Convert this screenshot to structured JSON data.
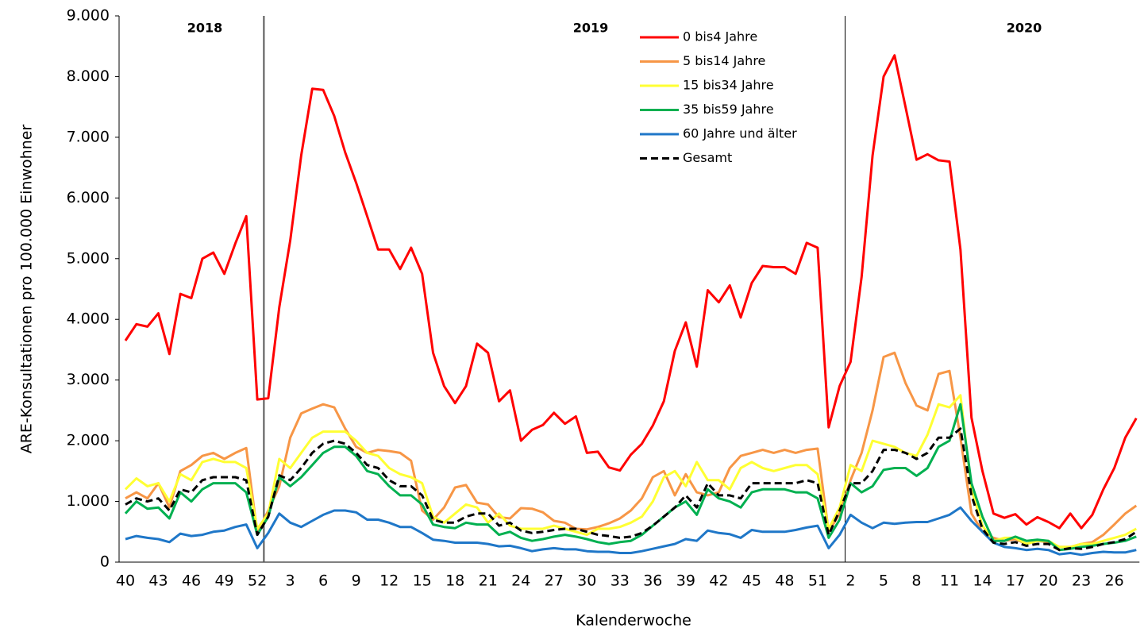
{
  "chart_data": {
    "type": "line",
    "x_label": "Kalenderwoche",
    "y_label": "ARE-Konsultationen pro 100.000 Einwohner",
    "annotations": [
      "2018",
      "2019",
      "2020"
    ],
    "categories": [
      "40",
      null,
      null,
      "43",
      null,
      null,
      "46",
      null,
      null,
      "49",
      null,
      null,
      "52",
      null,
      null,
      "3",
      null,
      null,
      "6",
      null,
      null,
      "9",
      null,
      null,
      "12",
      null,
      null,
      "15",
      null,
      null,
      "18",
      null,
      null,
      "21",
      null,
      null,
      "24",
      null,
      null,
      "27",
      null,
      null,
      "30",
      null,
      null,
      "33",
      null,
      null,
      "36",
      null,
      null,
      "39",
      null,
      null,
      "42",
      null,
      null,
      "45",
      null,
      null,
      "48",
      null,
      null,
      "51",
      null,
      null,
      "2",
      null,
      null,
      "5",
      null,
      null,
      "8",
      null,
      null,
      "11",
      null,
      null,
      "14",
      null,
      null,
      "17",
      null,
      null,
      "20",
      null,
      null,
      "23",
      null,
      null,
      "26",
      null,
      null
    ],
    "ylim": [
      0,
      9000
    ],
    "yticks": [
      0,
      {
        "value": 1000,
        "label": "1.000"
      },
      {
        "value": 2000,
        "label": "2.000"
      },
      {
        "value": 3000,
        "label": "3.000"
      },
      {
        "value": 4000,
        "label": "4.000"
      },
      {
        "value": 5000,
        "label": "5.000"
      },
      {
        "value": 6000,
        "label": "6.000"
      },
      {
        "value": 7000,
        "label": "7.000"
      },
      {
        "value": 8000,
        "label": "8.000"
      },
      {
        "value": 9000,
        "label": "9.000"
      }
    ],
    "series": [
      {
        "name": "0 bis4 Jahre",
        "color": "#ff0000",
        "values": [
          3650,
          3920,
          3880,
          4100,
          3430,
          4420,
          4350,
          5000,
          5100,
          4750,
          5250,
          5700,
          2680,
          2700,
          4200,
          5300,
          6700,
          7800,
          7780,
          7350,
          6750,
          6250,
          5700,
          5150,
          5150,
          4830,
          5180,
          4750,
          3450,
          2900,
          2620,
          2900,
          3600,
          3450,
          2650,
          2830,
          2000,
          2180,
          2260,
          2460,
          2280,
          2400,
          1800,
          1820,
          1560,
          1510,
          1770,
          1950,
          2250,
          2650,
          3480,
          3950,
          3220,
          4480,
          4280,
          4560,
          4030,
          4600,
          4880,
          4860,
          4860,
          4750,
          5260,
          5180,
          2220,
          2900,
          3300,
          4700,
          6700,
          8000,
          8350,
          7500,
          6630,
          6720,
          6620,
          6600,
          5150,
          2380,
          1500,
          800,
          730,
          790,
          620,
          740,
          660,
          560,
          800,
          560,
          780,
          1200,
          1550,
          2050,
          2370
        ]
      },
      {
        "name": "5 bis14 Jahre",
        "color": "#f79646",
        "values": [
          1050,
          1150,
          1050,
          1300,
          900,
          1500,
          1600,
          1750,
          1800,
          1700,
          1800,
          1880,
          480,
          850,
          1250,
          2050,
          2450,
          2530,
          2600,
          2550,
          2200,
          1900,
          1800,
          1850,
          1830,
          1800,
          1670,
          850,
          700,
          900,
          1230,
          1270,
          980,
          950,
          740,
          720,
          890,
          880,
          820,
          680,
          650,
          550,
          540,
          580,
          640,
          720,
          850,
          1050,
          1400,
          1500,
          1100,
          1450,
          1150,
          1100,
          1150,
          1550,
          1750,
          1800,
          1850,
          1800,
          1850,
          1800,
          1850,
          1870,
          500,
          800,
          1350,
          1800,
          2500,
          3380,
          3450,
          2950,
          2580,
          2500,
          3100,
          3150,
          2050,
          800,
          500,
          400,
          350,
          380,
          300,
          350,
          330,
          250,
          250,
          300,
          330,
          450,
          620,
          800,
          930
        ]
      },
      {
        "name": "15 bis34 Jahre",
        "color": "#ffff33",
        "values": [
          1200,
          1380,
          1250,
          1300,
          1000,
          1450,
          1350,
          1650,
          1700,
          1650,
          1650,
          1550,
          550,
          800,
          1700,
          1550,
          1800,
          2050,
          2150,
          2150,
          2150,
          2000,
          1800,
          1750,
          1550,
          1450,
          1400,
          1300,
          750,
          650,
          800,
          950,
          900,
          650,
          800,
          600,
          550,
          550,
          550,
          600,
          550,
          500,
          450,
          550,
          550,
          580,
          650,
          750,
          1000,
          1400,
          1500,
          1250,
          1650,
          1350,
          1350,
          1200,
          1550,
          1650,
          1550,
          1500,
          1550,
          1600,
          1600,
          1450,
          550,
          900,
          1600,
          1500,
          2000,
          1950,
          1900,
          1800,
          1750,
          2100,
          2600,
          2550,
          2750,
          1200,
          600,
          350,
          400,
          400,
          300,
          350,
          350,
          250,
          250,
          300,
          300,
          350,
          400,
          450,
          550
        ]
      },
      {
        "name": "35 bis59 Jahre",
        "color": "#00b050",
        "values": [
          800,
          1000,
          880,
          900,
          720,
          1150,
          1000,
          1200,
          1300,
          1300,
          1300,
          1150,
          450,
          750,
          1400,
          1250,
          1400,
          1600,
          1800,
          1900,
          1900,
          1750,
          1500,
          1450,
          1250,
          1100,
          1100,
          950,
          620,
          580,
          560,
          650,
          620,
          620,
          450,
          500,
          400,
          350,
          380,
          420,
          450,
          420,
          380,
          330,
          300,
          330,
          350,
          450,
          600,
          750,
          900,
          1000,
          780,
          1200,
          1050,
          1000,
          900,
          1150,
          1200,
          1200,
          1200,
          1150,
          1150,
          1050,
          400,
          700,
          1300,
          1150,
          1250,
          1520,
          1550,
          1550,
          1420,
          1550,
          1900,
          2000,
          2600,
          1300,
          750,
          350,
          350,
          420,
          350,
          370,
          350,
          200,
          220,
          250,
          270,
          300,
          320,
          350,
          420
        ]
      },
      {
        "name": "60 Jahre und älter",
        "color": "#1f77c8",
        "values": [
          380,
          430,
          400,
          380,
          330,
          470,
          430,
          450,
          500,
          520,
          580,
          620,
          230,
          480,
          800,
          650,
          580,
          680,
          780,
          850,
          850,
          820,
          700,
          700,
          650,
          580,
          580,
          480,
          370,
          350,
          320,
          320,
          320,
          300,
          260,
          270,
          230,
          180,
          210,
          230,
          210,
          210,
          180,
          170,
          170,
          150,
          150,
          180,
          220,
          260,
          300,
          380,
          350,
          520,
          480,
          460,
          400,
          530,
          500,
          500,
          500,
          530,
          570,
          600,
          230,
          450,
          780,
          650,
          560,
          650,
          630,
          650,
          660,
          660,
          720,
          780,
          900,
          680,
          500,
          320,
          250,
          230,
          200,
          220,
          200,
          130,
          150,
          120,
          150,
          170,
          160,
          160,
          200
        ]
      },
      {
        "name": "Gesamt",
        "color": "#000000",
        "dashed": true,
        "values": [
          950,
          1050,
          1000,
          1050,
          850,
          1200,
          1150,
          1350,
          1400,
          1400,
          1400,
          1350,
          450,
          750,
          1430,
          1350,
          1550,
          1800,
          1950,
          2000,
          1950,
          1800,
          1600,
          1550,
          1350,
          1250,
          1250,
          1100,
          700,
          650,
          650,
          750,
          800,
          800,
          600,
          650,
          520,
          480,
          500,
          530,
          550,
          550,
          500,
          450,
          430,
          400,
          420,
          480,
          600,
          750,
          900,
          1100,
          900,
          1300,
          1100,
          1100,
          1050,
          1300,
          1300,
          1300,
          1300,
          1300,
          1350,
          1300,
          450,
          850,
          1300,
          1300,
          1500,
          1850,
          1850,
          1800,
          1700,
          1800,
          2050,
          2050,
          2200,
          1100,
          550,
          320,
          300,
          330,
          270,
          300,
          300,
          200,
          230,
          220,
          250,
          300,
          330,
          380,
          500
        ]
      }
    ]
  }
}
